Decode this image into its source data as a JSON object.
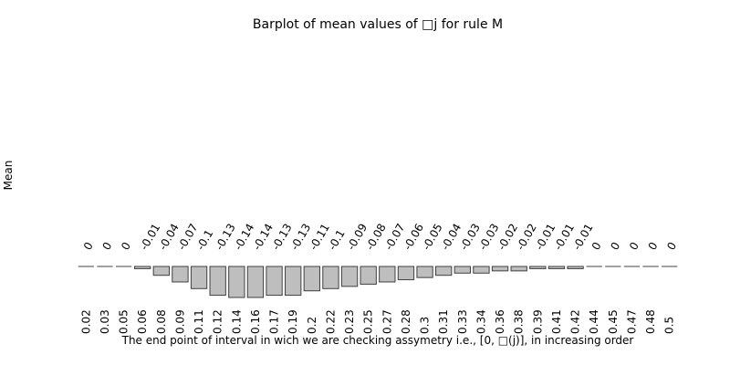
{
  "chart_data": {
    "type": "bar",
    "title": "Barplot of mean values of □j for rule M",
    "xlabel": "The end point of interval in wich we are checking assymetry i.e., [0, □(j)], in increasing order",
    "ylabel": "Mean",
    "categories": [
      "0.02",
      "0.03",
      "0.05",
      "0.06",
      "0.08",
      "0.09",
      "0.11",
      "0.12",
      "0.14",
      "0.16",
      "0.17",
      "0.19",
      "0.2",
      "0.22",
      "0.23",
      "0.25",
      "0.27",
      "0.28",
      "0.3",
      "0.31",
      "0.33",
      "0.34",
      "0.36",
      "0.38",
      "0.39",
      "0.41",
      "0.42",
      "0.44",
      "0.45",
      "0.47",
      "0.48",
      "0.5"
    ],
    "values": [
      0,
      0,
      0,
      -0.01,
      -0.04,
      -0.07,
      -0.1,
      -0.13,
      -0.14,
      -0.14,
      -0.13,
      -0.13,
      -0.11,
      -0.1,
      -0.09,
      -0.08,
      -0.07,
      -0.06,
      -0.05,
      -0.04,
      -0.03,
      -0.03,
      -0.02,
      -0.02,
      -0.01,
      -0.01,
      -0.01,
      0,
      0,
      0,
      0,
      0
    ],
    "data_labels": [
      "0",
      "0",
      "0",
      "-0.01",
      "-0.04",
      "-0.07",
      "-0.1",
      "-0.13",
      "-0.14",
      "-0.14",
      "-0.13",
      "-0.13",
      "-0.11",
      "-0.1",
      "-0.09",
      "-0.08",
      "-0.07",
      "-0.06",
      "-0.05",
      "-0.04",
      "-0.03",
      "-0.03",
      "-0.02",
      "-0.02",
      "-0.01",
      "-0.01",
      "-0.01",
      "0",
      "0",
      "0",
      "0",
      "0"
    ],
    "bar_fill": "#bebebe",
    "bar_stroke": "#404040",
    "axes_visible": false,
    "grid": false
  }
}
